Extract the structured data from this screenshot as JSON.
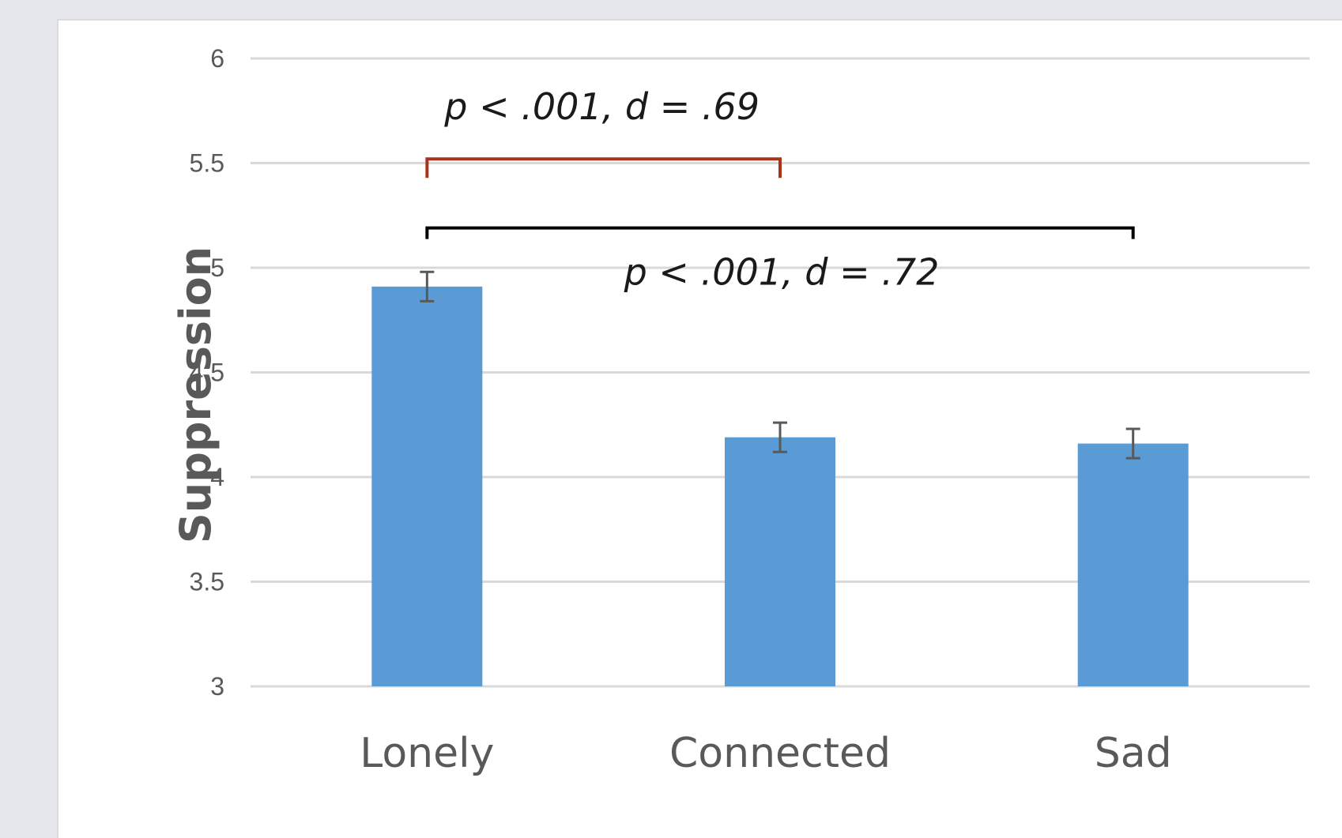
{
  "chart_data": {
    "type": "bar",
    "categories": [
      "Lonely",
      "Connected",
      "Sad"
    ],
    "values": [
      4.91,
      4.19,
      4.16
    ],
    "error": [
      0.07,
      0.07,
      0.07
    ],
    "ylabel": "Suppression",
    "xlabel": "",
    "ylim": [
      3,
      6
    ],
    "yticks": [
      3,
      3.5,
      4,
      4.5,
      5,
      5.5,
      6
    ],
    "ytick_labels": [
      "3",
      "3.5",
      "4",
      "4.5",
      "5",
      "5.5",
      "6"
    ],
    "grid": true,
    "colors": {
      "bar": "#5b9bd5",
      "grid": "#d9d9d9",
      "error_bar": "#595959",
      "bracket_1": "#a9341c",
      "bracket_2": "#000000"
    },
    "annotations": [
      {
        "text": "p < .001, d = .69",
        "from": "Lonely",
        "to": "Connected",
        "color": "#a9341c"
      },
      {
        "text": "p < .001, d = .72",
        "from": "Lonely",
        "to": "Sad",
        "color": "#000000"
      }
    ]
  }
}
